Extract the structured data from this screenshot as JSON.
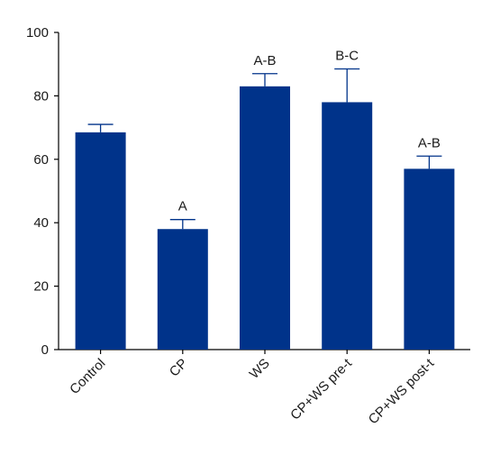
{
  "chart_data": {
    "type": "bar",
    "title": "",
    "xlabel": "",
    "ylabel": "",
    "ylim": [
      0,
      100
    ],
    "yticks": [
      0,
      20,
      40,
      60,
      80,
      100
    ],
    "grid": false,
    "bar_color": "#00338a",
    "categories": [
      "Control",
      "CP",
      "WS",
      "CP+WS pre-t",
      "CP+WS post-t"
    ],
    "values": [
      68.5,
      38,
      83,
      78,
      57
    ],
    "error_upper": [
      71,
      41,
      87,
      88.5,
      61
    ],
    "significance_labels": [
      "",
      "A",
      "A-B",
      "B-C",
      "A-B"
    ]
  }
}
